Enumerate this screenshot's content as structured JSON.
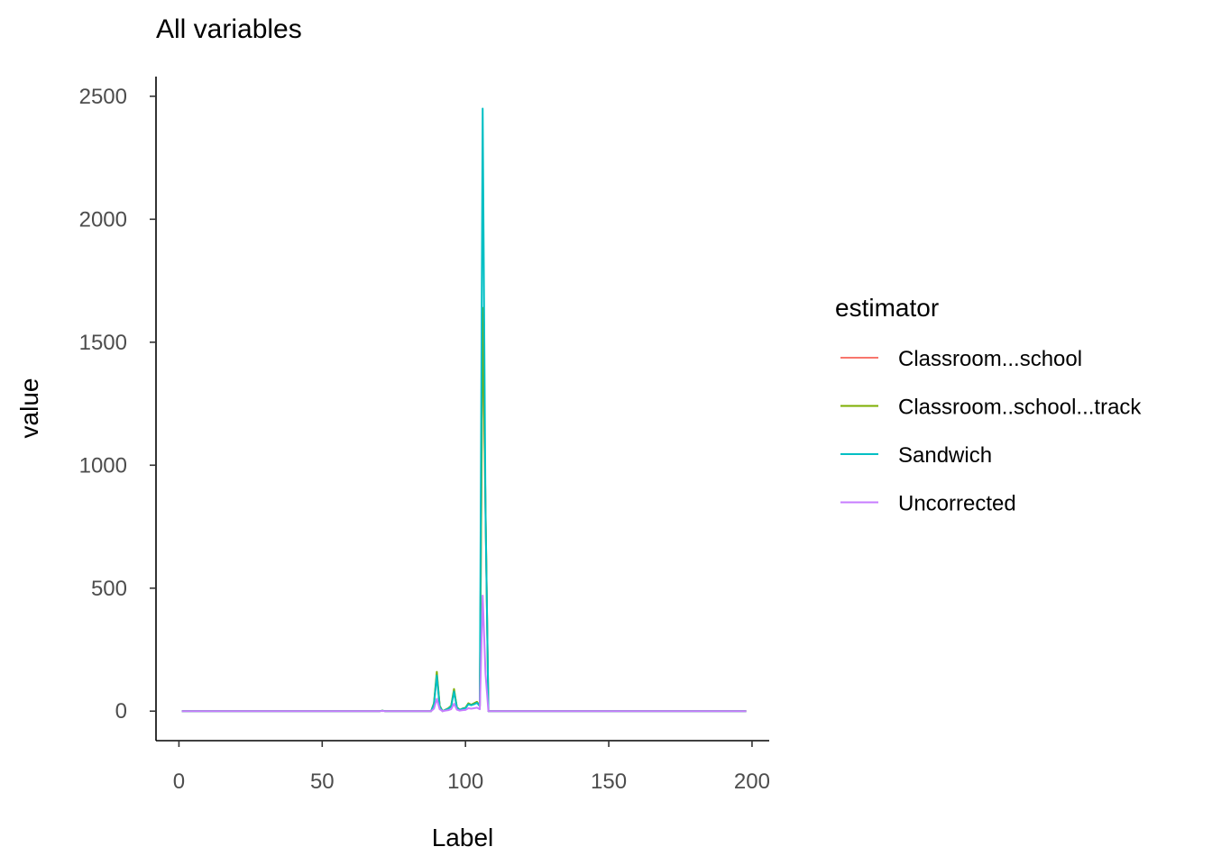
{
  "chart_data": {
    "type": "line",
    "title": "All variables",
    "xlabel": "Label",
    "ylabel": "value",
    "xlim": [
      -8,
      206
    ],
    "ylim": [
      -120,
      2580
    ],
    "xticks": [
      0,
      50,
      100,
      150,
      200
    ],
    "yticks": [
      0,
      500,
      1000,
      1500,
      2000,
      2500
    ],
    "grid": false,
    "legend": {
      "title": "estimator",
      "position": "right"
    },
    "series": [
      {
        "name": "Classroom...school",
        "color": "#F8766D",
        "x": [
          1,
          70,
          71,
          72,
          88,
          89,
          90,
          91,
          92,
          93,
          94,
          95,
          96,
          97,
          98,
          99,
          100,
          101,
          102,
          103,
          104,
          105,
          106,
          107,
          108,
          150,
          198
        ],
        "y": [
          0,
          0,
          2,
          0,
          0,
          30,
          150,
          20,
          0,
          5,
          10,
          20,
          85,
          15,
          5,
          10,
          12,
          30,
          25,
          30,
          35,
          20,
          1630,
          810,
          0,
          0,
          0
        ]
      },
      {
        "name": "Classroom..school...track",
        "color": "#7CAE00",
        "x": [
          1,
          70,
          71,
          72,
          88,
          89,
          90,
          91,
          92,
          93,
          94,
          95,
          96,
          97,
          98,
          99,
          100,
          101,
          102,
          103,
          104,
          105,
          106,
          107,
          108,
          150,
          198
        ],
        "y": [
          0,
          0,
          2,
          0,
          0,
          32,
          160,
          22,
          0,
          6,
          12,
          22,
          90,
          16,
          6,
          11,
          14,
          32,
          26,
          32,
          38,
          22,
          1640,
          820,
          0,
          0,
          0
        ]
      },
      {
        "name": "Sandwich",
        "color": "#00BFC4",
        "x": [
          1,
          70,
          71,
          72,
          88,
          89,
          90,
          91,
          92,
          93,
          94,
          95,
          96,
          97,
          98,
          99,
          100,
          101,
          102,
          103,
          104,
          105,
          106,
          107,
          108,
          150,
          198
        ],
        "y": [
          0,
          0,
          2,
          0,
          0,
          28,
          145,
          18,
          0,
          5,
          10,
          18,
          80,
          14,
          5,
          10,
          12,
          28,
          24,
          28,
          34,
          20,
          2450,
          800,
          0,
          0,
          0
        ]
      },
      {
        "name": "Uncorrected",
        "color": "#C77CFF",
        "x": [
          1,
          70,
          71,
          72,
          88,
          89,
          90,
          91,
          92,
          93,
          94,
          95,
          96,
          97,
          98,
          99,
          100,
          101,
          102,
          103,
          104,
          105,
          106,
          107,
          108,
          150,
          198
        ],
        "y": [
          0,
          0,
          1,
          0,
          0,
          10,
          50,
          8,
          0,
          2,
          4,
          8,
          30,
          6,
          2,
          4,
          5,
          12,
          10,
          12,
          14,
          8,
          470,
          150,
          0,
          0,
          0
        ]
      }
    ]
  }
}
